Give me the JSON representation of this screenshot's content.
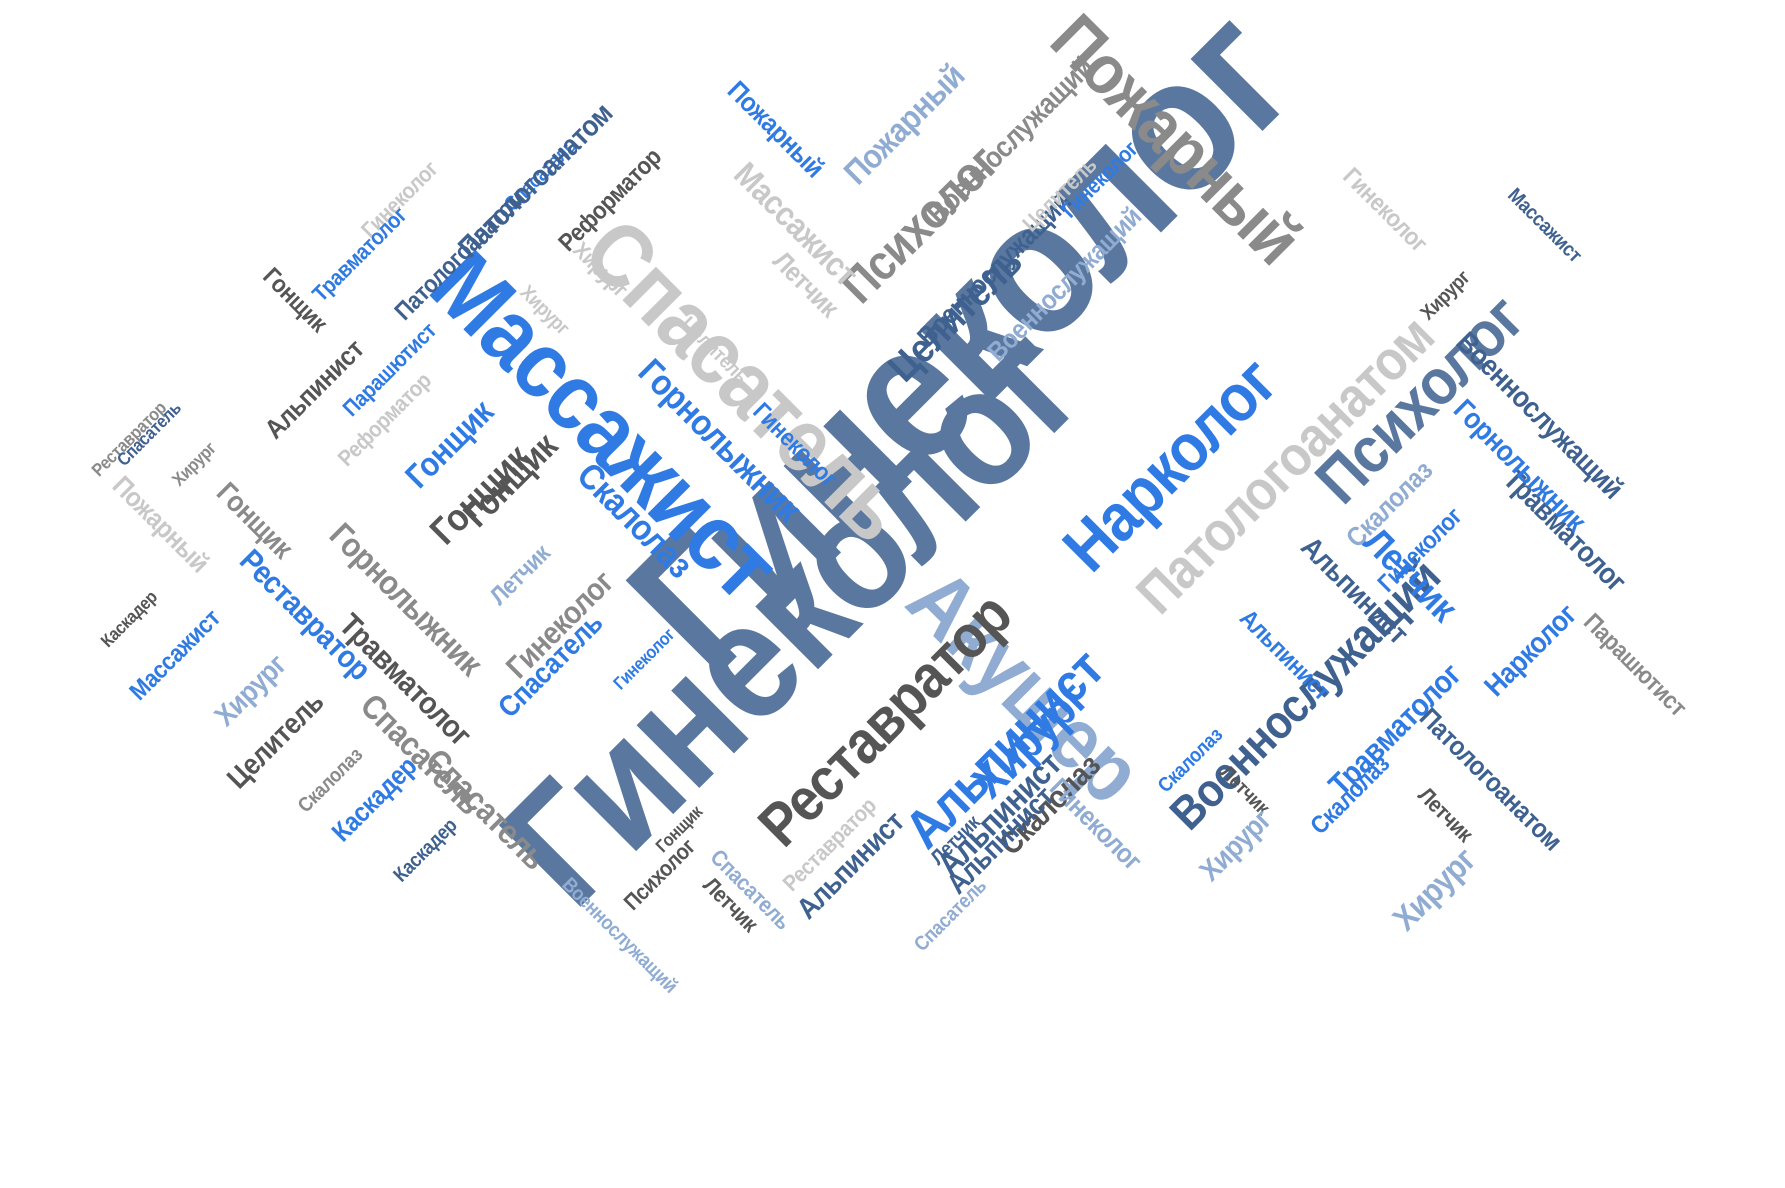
{
  "colors": {
    "background": "#ffffff",
    "palette": {
      "slate": "#5a789f",
      "blue": "#2f7be3",
      "steel": "#3f6190",
      "light_blue": "#90acd2",
      "gray": "#8a8a8a",
      "light_gray": "#c8c8c8",
      "dark_gray": "#555555"
    }
  },
  "words": [
    {
      "text": "Гинеколог",
      "color": "slate"
    },
    {
      "text": "Гинеколог",
      "color": "slate"
    },
    {
      "text": "Массажист",
      "color": "blue"
    },
    {
      "text": "Спасатель",
      "color": "light_gray"
    },
    {
      "text": "Пожарный",
      "color": "gray"
    },
    {
      "text": "Акушер",
      "color": "light_blue"
    },
    {
      "text": "Нарколог",
      "color": "blue"
    },
    {
      "text": "Патологоанатом",
      "color": "light_gray"
    },
    {
      "text": "Психолог",
      "color": "slate"
    },
    {
      "text": "Реставратор",
      "color": "dark_gray"
    },
    {
      "text": "Альпинист",
      "color": "blue"
    },
    {
      "text": "Военнослужащий",
      "color": "steel"
    },
    {
      "text": "Целитель",
      "color": "steel"
    },
    {
      "text": "Психолог",
      "color": "gray"
    },
    {
      "text": "Горнолыжник",
      "color": "blue"
    },
    {
      "text": "Скалолаз",
      "color": "blue"
    },
    {
      "text": "Гонщик",
      "color": "dark_gray"
    },
    {
      "text": "Горнолыжник",
      "color": "gray"
    },
    {
      "text": "Травматолог",
      "color": "dark_gray"
    },
    {
      "text": "Спасатель",
      "color": "gray"
    },
    {
      "text": "Хирург",
      "color": "blue"
    },
    {
      "text": "Альпинист",
      "color": "steel"
    },
    {
      "text": "Скалолаз",
      "color": "dark_gray"
    },
    {
      "text": "Военнослужащий",
      "color": "steel"
    },
    {
      "text": "Травматолог",
      "color": "steel"
    },
    {
      "text": "Нарколог",
      "color": "blue"
    },
    {
      "text": "Летчик",
      "color": "blue"
    },
    {
      "text": "Скалолаз",
      "color": "light_blue"
    },
    {
      "text": "Гинеколог",
      "color": "blue"
    },
    {
      "text": "Альпинист",
      "color": "steel"
    },
    {
      "text": "Альпинист",
      "color": "blue"
    },
    {
      "text": "Военнослужащий",
      "color": "steel"
    },
    {
      "text": "Горнолыжник",
      "color": "blue"
    },
    {
      "text": "Травматолог",
      "color": "blue"
    },
    {
      "text": "Парашютист",
      "color": "gray"
    },
    {
      "text": "Патологоанатом",
      "color": "steel"
    },
    {
      "text": "Хирург",
      "color": "light_blue"
    },
    {
      "text": "Скалолаз",
      "color": "blue"
    },
    {
      "text": "Летчик",
      "color": "dark_gray"
    },
    {
      "text": "Массажист",
      "color": "steel"
    },
    {
      "text": "Хирург",
      "color": "dark_gray"
    },
    {
      "text": "Гинеколог",
      "color": "light_gray"
    },
    {
      "text": "Военнослужащий",
      "color": "gray"
    },
    {
      "text": "Пожарный",
      "color": "blue"
    },
    {
      "text": "Пожарный",
      "color": "light_blue"
    },
    {
      "text": "Массажист",
      "color": "light_gray"
    },
    {
      "text": "Летчик",
      "color": "light_gray"
    },
    {
      "text": "Целитель",
      "color": "light_gray"
    },
    {
      "text": "Гинеколог",
      "color": "blue"
    },
    {
      "text": "Военнослужащий",
      "color": "light_blue"
    },
    {
      "text": "Реформатор",
      "color": "dark_gray"
    },
    {
      "text": "Спасатель",
      "color": "blue"
    },
    {
      "text": "Патологоанатом",
      "color": "steel"
    },
    {
      "text": "Гинеколог",
      "color": "light_gray"
    },
    {
      "text": "Травматолог",
      "color": "blue"
    },
    {
      "text": "Патологоанатом",
      "color": "steel"
    },
    {
      "text": "Гонщик",
      "color": "dark_gray"
    },
    {
      "text": "Хирург",
      "color": "light_gray"
    },
    {
      "text": "Хирург",
      "color": "light_gray"
    },
    {
      "text": "Целитель",
      "color": "light_gray"
    },
    {
      "text": "Гинеколог",
      "color": "blue"
    },
    {
      "text": "Альпинист",
      "color": "dark_gray"
    },
    {
      "text": "Парашютист",
      "color": "blue"
    },
    {
      "text": "Реформатор",
      "color": "light_gray"
    },
    {
      "text": "Гонщик",
      "color": "blue"
    },
    {
      "text": "Гонщик",
      "color": "dark_gray"
    },
    {
      "text": "Реставратор",
      "color": "gray"
    },
    {
      "text": "Спасатель",
      "color": "steel"
    },
    {
      "text": "Хирург",
      "color": "gray"
    },
    {
      "text": "Пожарный",
      "color": "light_gray"
    },
    {
      "text": "Гонщик",
      "color": "gray"
    },
    {
      "text": "Реставратор",
      "color": "blue"
    },
    {
      "text": "Летчик",
      "color": "light_blue"
    },
    {
      "text": "Гинеколог",
      "color": "gray"
    },
    {
      "text": "Спасатель",
      "color": "blue"
    },
    {
      "text": "Гинеколог",
      "color": "blue"
    },
    {
      "text": "Каскадер",
      "color": "dark_gray"
    },
    {
      "text": "Массажист",
      "color": "blue"
    },
    {
      "text": "Хирург",
      "color": "light_blue"
    },
    {
      "text": "Целитель",
      "color": "dark_gray"
    },
    {
      "text": "Спасатель",
      "color": "gray"
    },
    {
      "text": "Скалолаз",
      "color": "gray"
    },
    {
      "text": "Каскадер",
      "color": "blue"
    },
    {
      "text": "Каскадер",
      "color": "steel"
    },
    {
      "text": "Военнослужащий",
      "color": "light_blue"
    },
    {
      "text": "Гонщик",
      "color": "dark_gray"
    },
    {
      "text": "Психолог",
      "color": "dark_gray"
    },
    {
      "text": "Летчик",
      "color": "dark_gray"
    },
    {
      "text": "Спасатель",
      "color": "light_blue"
    },
    {
      "text": "Реставратор",
      "color": "light_gray"
    },
    {
      "text": "Альпинист",
      "color": "steel"
    },
    {
      "text": "Альпинист",
      "color": "steel"
    },
    {
      "text": "Летчик",
      "color": "steel"
    },
    {
      "text": "Спасатель",
      "color": "light_blue"
    },
    {
      "text": "Гинеколог",
      "color": "light_blue"
    },
    {
      "text": "Скалолаз",
      "color": "blue"
    },
    {
      "text": "Летчик",
      "color": "dark_gray"
    },
    {
      "text": "Хирург",
      "color": "light_blue"
    }
  ]
}
